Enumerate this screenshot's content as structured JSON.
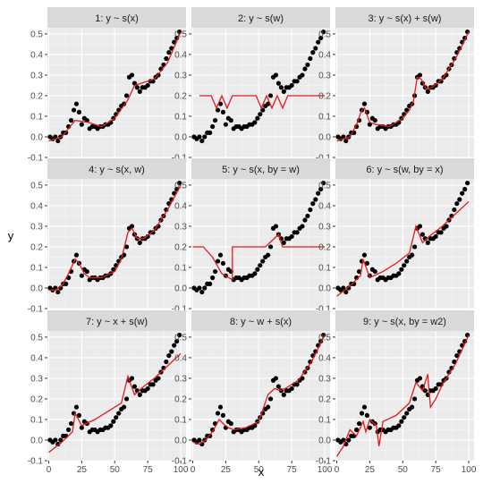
{
  "figure": {
    "xlabel": "x",
    "ylabel": "y",
    "colors": {
      "panel_bg": "#ebebeb",
      "strip_bg": "#d9d9d9",
      "grid_major": "#ffffff",
      "grid_minor": "#f5f5f5",
      "points": "#000000",
      "fit_line": "#e41a1c",
      "tick_text": "#4d4d4d",
      "strip_text": "#1a1a1a"
    },
    "xlim": [
      -1,
      104
    ],
    "ylim": [
      -0.1,
      0.53
    ],
    "x_ticks": [
      0,
      25,
      50,
      75,
      100
    ],
    "x_tick_labels": [
      "0",
      "25",
      "50",
      "75",
      "100"
    ],
    "y_ticks": [
      -0.1,
      0.0,
      0.1,
      0.2,
      0.3,
      0.4,
      0.5
    ],
    "y_tick_labels": [
      "-0.1",
      "0.0",
      "0.1",
      "0.2",
      "0.3",
      "0.4",
      "0.5"
    ]
  },
  "chart_data": {
    "type": "scatter",
    "layout": "facet grid 3x3",
    "xlabel": "x",
    "ylabel": "y",
    "xlim": [
      -1,
      104
    ],
    "ylim": [
      -0.1,
      0.53
    ],
    "grid": true,
    "legend": "none",
    "points": {
      "x": [
        1,
        3,
        5,
        7,
        9,
        11,
        13,
        15,
        17,
        19,
        21,
        23,
        25,
        27,
        29,
        31,
        33,
        35,
        37,
        39,
        41,
        43,
        45,
        47,
        49,
        51,
        53,
        55,
        57,
        59,
        61,
        63,
        65,
        67,
        69,
        71,
        73,
        75,
        77,
        79,
        81,
        83,
        85,
        87,
        89,
        91,
        93,
        95,
        97,
        99
      ],
      "y": [
        0.0,
        -0.01,
        0.0,
        -0.02,
        0.0,
        0.02,
        0.02,
        0.05,
        0.08,
        0.13,
        0.16,
        0.12,
        0.06,
        0.09,
        0.08,
        0.04,
        0.05,
        0.05,
        0.04,
        0.05,
        0.05,
        0.06,
        0.06,
        0.07,
        0.09,
        0.11,
        0.13,
        0.15,
        0.16,
        0.2,
        0.29,
        0.3,
        0.26,
        0.24,
        0.22,
        0.24,
        0.24,
        0.25,
        0.27,
        0.27,
        0.29,
        0.3,
        0.33,
        0.35,
        0.38,
        0.41,
        0.43,
        0.46,
        0.48,
        0.51
      ]
    },
    "panels": [
      {
        "title": "1: y ~ s(x)",
        "line": {
          "x": [
            0,
            10,
            20,
            30,
            40,
            50,
            60,
            65,
            70,
            80,
            90,
            100
          ],
          "y": [
            -0.02,
            0.0,
            0.08,
            0.07,
            0.05,
            0.09,
            0.18,
            0.25,
            0.26,
            0.28,
            0.36,
            0.51
          ]
        }
      },
      {
        "title": "2: y ~ s(w)",
        "line": {
          "x": [
            5,
            14,
            18,
            22,
            26,
            30,
            48,
            52,
            56,
            60,
            64,
            68,
            72,
            100
          ],
          "y": [
            0.2,
            0.2,
            0.14,
            0.2,
            0.14,
            0.2,
            0.2,
            0.14,
            0.2,
            0.14,
            0.2,
            0.14,
            0.2,
            0.2
          ]
        }
      },
      {
        "title": "3: y ~ s(x) + s(w)",
        "line": {
          "x": [
            0,
            5,
            10,
            15,
            19,
            21,
            25,
            30,
            40,
            50,
            55,
            58,
            61,
            64,
            68,
            72,
            80,
            90,
            100
          ],
          "y": [
            -0.02,
            -0.01,
            0.0,
            0.06,
            0.13,
            0.14,
            0.07,
            0.06,
            0.05,
            0.09,
            0.13,
            0.17,
            0.29,
            0.28,
            0.23,
            0.24,
            0.28,
            0.38,
            0.51
          ]
        }
      },
      {
        "title": "4: y ~ s(x, w)",
        "line": {
          "x": [
            0,
            5,
            10,
            15,
            20,
            23,
            27,
            31,
            40,
            50,
            55,
            60,
            63,
            67,
            72,
            80,
            90,
            100
          ],
          "y": [
            -0.01,
            -0.01,
            0.01,
            0.07,
            0.14,
            0.12,
            0.07,
            0.05,
            0.05,
            0.08,
            0.14,
            0.27,
            0.29,
            0.24,
            0.24,
            0.28,
            0.38,
            0.5
          ]
        }
      },
      {
        "title": "5: y ~ s(x, by = w)",
        "line": {
          "x": [
            0,
            8,
            15,
            22,
            30,
            30.01,
            55,
            65,
            68,
            72,
            100
          ],
          "y": [
            0.2,
            0.2,
            0.15,
            0.07,
            0.04,
            0.2,
            0.2,
            0.26,
            0.2,
            0.2,
            0.2
          ]
        }
      },
      {
        "title": "6: y ~ s(w, by = x)",
        "line": {
          "x": [
            0,
            10,
            18,
            20,
            25,
            35,
            45,
            55,
            60,
            65,
            70,
            80,
            90,
            100
          ],
          "y": [
            -0.04,
            0.01,
            0.06,
            0.14,
            0.05,
            0.08,
            0.12,
            0.17,
            0.3,
            0.22,
            0.25,
            0.3,
            0.36,
            0.42
          ]
        }
      },
      {
        "title": "7: y ~ x + s(w)",
        "line": {
          "x": [
            0,
            10,
            18,
            20,
            25,
            35,
            45,
            55,
            60,
            65,
            70,
            80,
            90,
            100
          ],
          "y": [
            -0.06,
            -0.01,
            0.04,
            0.13,
            0.07,
            0.1,
            0.14,
            0.18,
            0.31,
            0.22,
            0.25,
            0.3,
            0.36,
            0.42
          ]
        }
      },
      {
        "title": "8: y ~ w + s(x)",
        "line": {
          "x": [
            0,
            5,
            10,
            15,
            20,
            23,
            27,
            31,
            40,
            50,
            57,
            62,
            66,
            70,
            80,
            90,
            100
          ],
          "y": [
            -0.01,
            -0.02,
            0.0,
            0.04,
            0.1,
            0.08,
            0.06,
            0.05,
            0.06,
            0.09,
            0.22,
            0.25,
            0.24,
            0.25,
            0.29,
            0.38,
            0.51
          ]
        }
      },
      {
        "title": "9: y ~ s(x, by = w2)",
        "line": {
          "x": [
            0,
            5,
            10,
            15,
            20,
            22,
            25,
            30,
            32,
            35,
            45,
            55,
            60,
            65,
            69,
            70,
            71,
            75,
            80,
            90,
            100
          ],
          "y": [
            -0.08,
            -0.03,
            0.05,
            0.02,
            0.09,
            0.04,
            0.1,
            0.07,
            -0.03,
            0.09,
            0.12,
            0.18,
            0.28,
            0.24,
            0.32,
            0.23,
            0.16,
            0.2,
            0.27,
            0.37,
            0.51
          ]
        }
      }
    ]
  }
}
